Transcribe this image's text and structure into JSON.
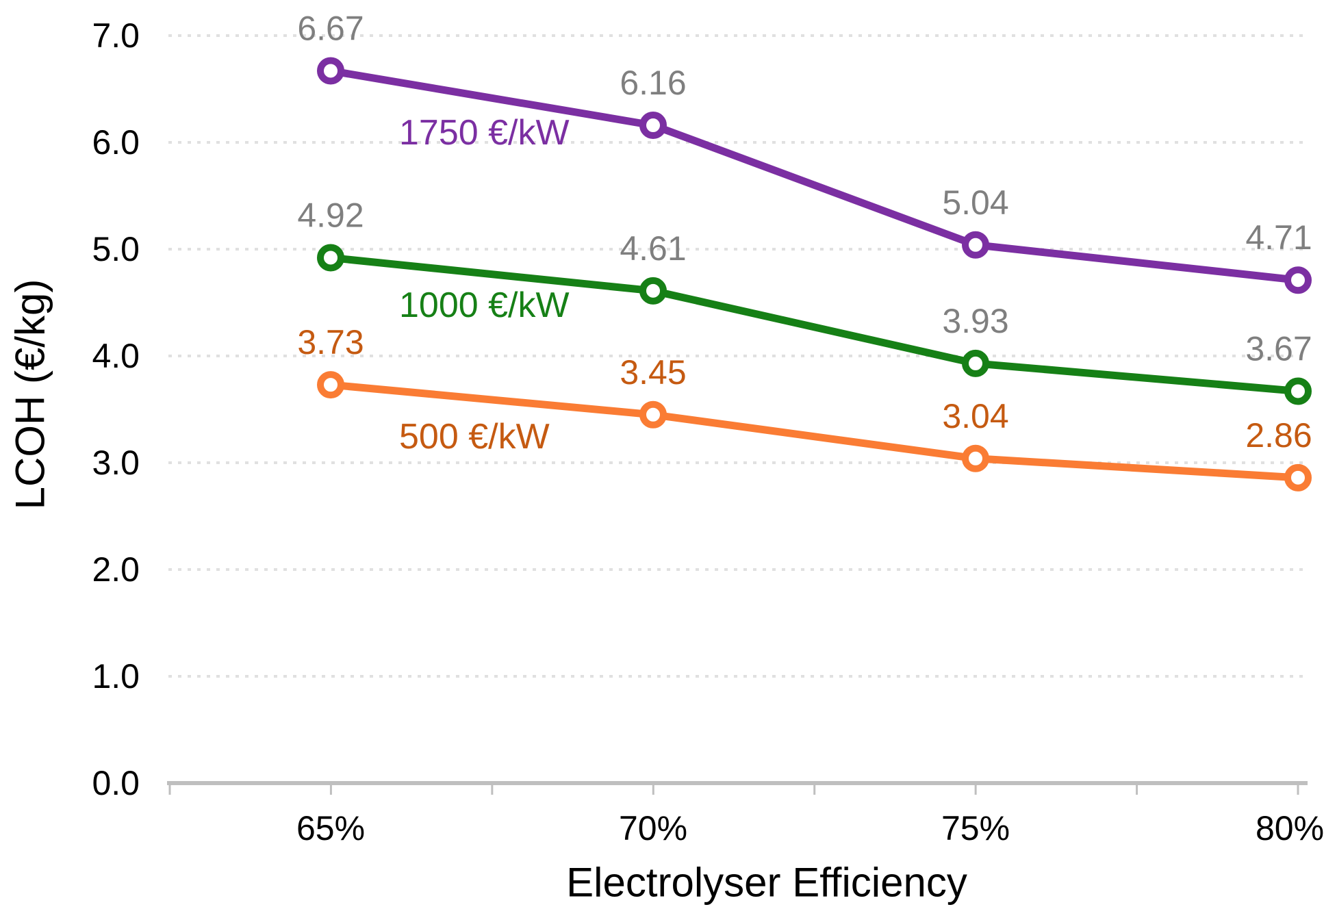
{
  "chart_data": {
    "type": "line",
    "title": "",
    "xlabel": "Electrolyser Efficiency",
    "ylabel": "LCOH (€/kg)",
    "categories": [
      "65%",
      "70%",
      "75%",
      "80%"
    ],
    "series": [
      {
        "name": "1750 €/kW",
        "values": [
          6.67,
          6.16,
          5.04,
          4.71
        ],
        "line_color": "#7B2FA2",
        "data_label_color": "#7F7F7F"
      },
      {
        "name": "1000 €/kW",
        "values": [
          4.92,
          4.61,
          3.93,
          3.67
        ],
        "line_color": "#168016",
        "data_label_color": "#7F7F7F"
      },
      {
        "name": "500 €/kW",
        "values": [
          3.73,
          3.45,
          3.04,
          2.86
        ],
        "line_color": "#FA7C34",
        "data_label_color": "#C55A11"
      }
    ],
    "ylim": [
      0,
      7
    ],
    "ytick_labels": [
      "0.0",
      "1.0",
      "2.0",
      "3.0",
      "4.0",
      "5.0",
      "6.0",
      "7.0"
    ],
    "data_label_format": "0.00",
    "marker_style": "open-circle",
    "grid": "horizontal dotted gridlines every 1.0",
    "legend_position": "inline series labels on plot",
    "colors": {
      "axis_line": "#BFBFBF",
      "gridline": "#E0E0E0",
      "tick_label_text": "#000000",
      "axis_title_text": "#000000"
    }
  }
}
